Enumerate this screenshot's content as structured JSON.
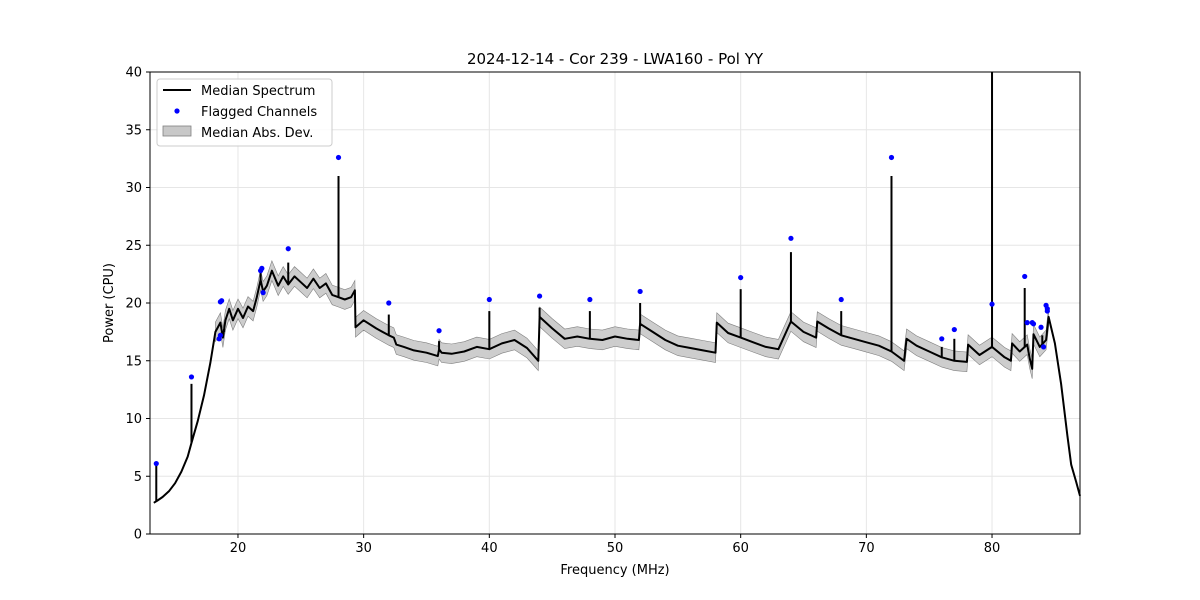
{
  "chart_data": {
    "type": "line",
    "title": "2024-12-14 - Cor 239 - LWA160 - Pol YY",
    "xlabel": "Frequency (MHz)",
    "ylabel": "Power (CPU)",
    "xlim": [
      13,
      87
    ],
    "ylim": [
      0,
      40
    ],
    "xticks": [
      20,
      30,
      40,
      50,
      60,
      70,
      80
    ],
    "yticks": [
      0,
      5,
      10,
      15,
      20,
      25,
      30,
      35,
      40
    ],
    "grid": true,
    "legend_position": "upper-left",
    "colors": {
      "median": "#000000",
      "flagged": "#0000ff",
      "mad": "#c8c8c8",
      "mad_edge": "#808080"
    },
    "legend": {
      "median_label": "Median Spectrum",
      "flagged_label": "Flagged Channels",
      "mad_label": "Median Abs. Dev."
    },
    "median_points": [
      [
        13.3,
        2.7
      ],
      [
        13.6,
        2.9
      ],
      [
        14.0,
        3.2
      ],
      [
        14.5,
        3.7
      ],
      [
        15.0,
        4.4
      ],
      [
        15.5,
        5.4
      ],
      [
        16.0,
        6.7
      ],
      [
        16.3,
        7.9
      ],
      [
        16.8,
        9.8
      ],
      [
        17.3,
        12.0
      ],
      [
        17.8,
        14.8
      ],
      [
        18.2,
        17.5
      ],
      [
        18.6,
        18.3
      ],
      [
        18.8,
        17.0
      ],
      [
        19.0,
        18.5
      ],
      [
        19.3,
        19.5
      ],
      [
        19.6,
        18.5
      ],
      [
        20.0,
        19.5
      ],
      [
        20.4,
        18.7
      ],
      [
        20.8,
        19.7
      ],
      [
        21.2,
        19.3
      ],
      [
        21.5,
        20.5
      ],
      [
        21.8,
        22.0
      ],
      [
        22.0,
        21.0
      ],
      [
        22.3,
        21.5
      ],
      [
        22.7,
        22.8
      ],
      [
        23.2,
        21.5
      ],
      [
        23.6,
        22.3
      ],
      [
        24.0,
        21.6
      ],
      [
        24.5,
        22.3
      ],
      [
        25.0,
        21.8
      ],
      [
        25.5,
        21.3
      ],
      [
        26.0,
        22.1
      ],
      [
        26.5,
        21.3
      ],
      [
        27.0,
        21.7
      ],
      [
        27.5,
        20.7
      ],
      [
        28.0,
        20.5
      ],
      [
        28.5,
        20.3
      ],
      [
        29.0,
        20.5
      ],
      [
        29.3,
        21.1
      ],
      [
        29.35,
        17.9
      ],
      [
        30.0,
        18.5
      ],
      [
        31.0,
        17.8
      ],
      [
        31.5,
        17.5
      ],
      [
        32.0,
        17.2
      ],
      [
        32.4,
        17.0
      ],
      [
        32.6,
        16.4
      ],
      [
        33.2,
        16.2
      ],
      [
        34.0,
        15.9
      ],
      [
        35.0,
        15.7
      ],
      [
        35.9,
        15.4
      ],
      [
        36.0,
        16.0
      ],
      [
        36.2,
        15.7
      ],
      [
        37.0,
        15.6
      ],
      [
        38.0,
        15.8
      ],
      [
        39.0,
        16.2
      ],
      [
        40.0,
        16.0
      ],
      [
        41.0,
        16.5
      ],
      [
        42.0,
        16.8
      ],
      [
        43.0,
        16.1
      ],
      [
        43.9,
        15.0
      ],
      [
        44.0,
        18.8
      ],
      [
        45.0,
        17.8
      ],
      [
        46.0,
        16.9
      ],
      [
        47.0,
        17.1
      ],
      [
        48.0,
        16.9
      ],
      [
        49.0,
        16.8
      ],
      [
        50.0,
        17.1
      ],
      [
        51.0,
        16.9
      ],
      [
        51.9,
        16.8
      ],
      [
        52.0,
        18.2
      ],
      [
        53.0,
        17.5
      ],
      [
        54.0,
        16.8
      ],
      [
        55.0,
        16.3
      ],
      [
        56.0,
        16.1
      ],
      [
        57.0,
        15.9
      ],
      [
        58.0,
        15.7
      ],
      [
        58.1,
        18.3
      ],
      [
        59.0,
        17.4
      ],
      [
        60.0,
        17.0
      ],
      [
        61.0,
        16.6
      ],
      [
        62.0,
        16.2
      ],
      [
        63.0,
        16.0
      ],
      [
        64.0,
        18.4
      ],
      [
        65.0,
        17.5
      ],
      [
        66.0,
        17.0
      ],
      [
        66.1,
        18.4
      ],
      [
        67.0,
        17.8
      ],
      [
        68.0,
        17.2
      ],
      [
        69.0,
        16.9
      ],
      [
        70.0,
        16.6
      ],
      [
        71.0,
        16.3
      ],
      [
        72.0,
        15.8
      ],
      [
        73.0,
        15.0
      ],
      [
        73.2,
        16.9
      ],
      [
        74.0,
        16.3
      ],
      [
        75.0,
        15.8
      ],
      [
        76.0,
        15.3
      ],
      [
        77.0,
        15.0
      ],
      [
        78.0,
        14.9
      ],
      [
        78.1,
        16.4
      ],
      [
        79.0,
        15.5
      ],
      [
        80.0,
        16.2
      ],
      [
        81.0,
        15.3
      ],
      [
        81.5,
        15.0
      ],
      [
        81.6,
        16.5
      ],
      [
        82.2,
        15.8
      ],
      [
        82.8,
        16.4
      ],
      [
        83.0,
        15.2
      ],
      [
        83.2,
        14.3
      ],
      [
        83.3,
        17.3
      ],
      [
        83.8,
        16.2
      ],
      [
        84.3,
        16.8
      ],
      [
        84.5,
        18.8
      ],
      [
        85.0,
        16.5
      ],
      [
        85.5,
        13.0
      ],
      [
        86.0,
        8.5
      ],
      [
        86.3,
        6.0
      ],
      [
        86.7,
        4.5
      ],
      [
        87.0,
        3.3
      ]
    ],
    "mad_halfwidth": 0.85,
    "spikes": [
      [
        13.5,
        6.0
      ],
      [
        16.3,
        13.0
      ],
      [
        18.9,
        17.5
      ],
      [
        21.8,
        22.8
      ],
      [
        24.0,
        23.5
      ],
      [
        28.0,
        31.0
      ],
      [
        32.0,
        19.0
      ],
      [
        36.0,
        16.7
      ],
      [
        40.0,
        19.3
      ],
      [
        44.0,
        19.6
      ],
      [
        48.0,
        19.3
      ],
      [
        52.0,
        20.0
      ],
      [
        60.0,
        21.2
      ],
      [
        64.0,
        24.4
      ],
      [
        68.0,
        19.3
      ],
      [
        72.0,
        31.0
      ],
      [
        76.0,
        16.2
      ],
      [
        77.0,
        16.9
      ],
      [
        80.0,
        40.0
      ],
      [
        82.6,
        21.3
      ],
      [
        84.0,
        17.2
      ]
    ],
    "flagged_points": [
      [
        13.5,
        6.1
      ],
      [
        16.3,
        13.6
      ],
      [
        18.5,
        16.9
      ],
      [
        18.6,
        17.2
      ],
      [
        18.6,
        20.1
      ],
      [
        18.7,
        20.2
      ],
      [
        21.8,
        22.8
      ],
      [
        21.9,
        23.0
      ],
      [
        22.0,
        20.9
      ],
      [
        24.0,
        24.7
      ],
      [
        28.0,
        32.6
      ],
      [
        32.0,
        20.0
      ],
      [
        36.0,
        17.6
      ],
      [
        40.0,
        20.3
      ],
      [
        44.0,
        20.6
      ],
      [
        48.0,
        20.3
      ],
      [
        52.0,
        21.0
      ],
      [
        60.0,
        22.2
      ],
      [
        64.0,
        25.6
      ],
      [
        68.0,
        20.3
      ],
      [
        72.0,
        32.6
      ],
      [
        76.0,
        16.9
      ],
      [
        77.0,
        17.7
      ],
      [
        80.0,
        19.9
      ],
      [
        82.6,
        22.3
      ],
      [
        82.8,
        18.3
      ],
      [
        83.2,
        18.3
      ],
      [
        83.3,
        18.2
      ],
      [
        83.9,
        17.9
      ],
      [
        84.1,
        16.2
      ],
      [
        84.3,
        19.8
      ],
      [
        84.4,
        19.5
      ],
      [
        84.4,
        19.3
      ]
    ]
  }
}
